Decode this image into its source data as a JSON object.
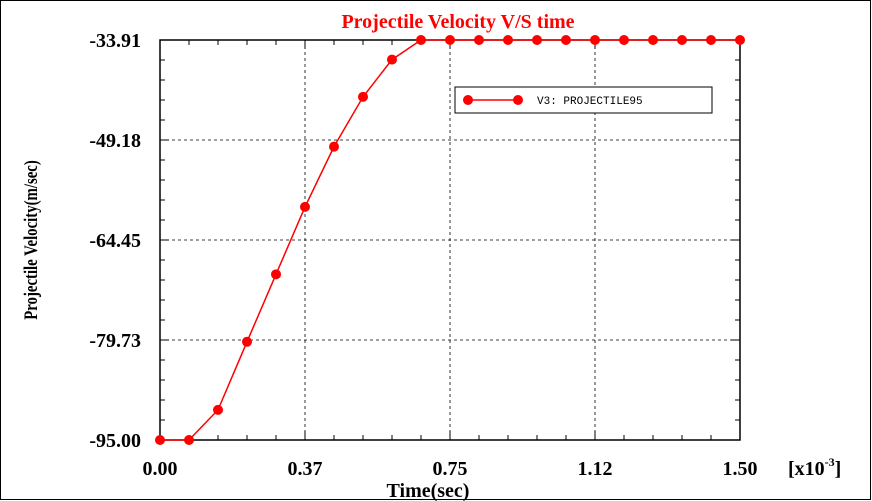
{
  "chart_data": {
    "type": "line",
    "title": "Projectile Velocity V/S time",
    "xlabel": "Time(sec)",
    "ylabel": "Projectile Velocity(m/sec)",
    "x_multiplier": "[x10",
    "x_multiplier_exp": "-3",
    "x_multiplier_close": "]",
    "xlim": [
      0,
      1.5
    ],
    "ylim": [
      -95.0,
      -33.91
    ],
    "xticks": [
      0.0,
      0.375,
      0.75,
      1.125,
      1.5
    ],
    "xtick_labels": [
      "0.00",
      "0.37",
      "0.75",
      "1.12",
      "1.50"
    ],
    "yticks": [
      -95.0,
      -79.73,
      -64.45,
      -49.18,
      -33.91
    ],
    "ytick_labels": [
      "-95.00",
      "-79.73",
      "-64.45",
      "-49.18",
      "-33.91"
    ],
    "grid": true,
    "legend_position": "top-right",
    "series": [
      {
        "name": "V3: PROJECTILE95",
        "color": "#ff0000",
        "marker": "circle",
        "x": [
          0.0,
          0.075,
          0.15,
          0.225,
          0.3,
          0.375,
          0.45,
          0.525,
          0.6,
          0.675,
          0.75,
          0.825,
          0.9,
          0.975,
          1.05,
          1.125,
          1.2,
          1.275,
          1.35,
          1.425,
          1.5
        ],
        "y": [
          -95.0,
          -95.0,
          -90.4,
          -80.0,
          -69.7,
          -59.4,
          -50.2,
          -42.6,
          -36.9,
          -33.91,
          -33.91,
          -33.91,
          -33.91,
          -33.91,
          -33.91,
          -33.91,
          -33.91,
          -33.91,
          -33.91,
          -33.91,
          -33.91
        ]
      }
    ]
  }
}
